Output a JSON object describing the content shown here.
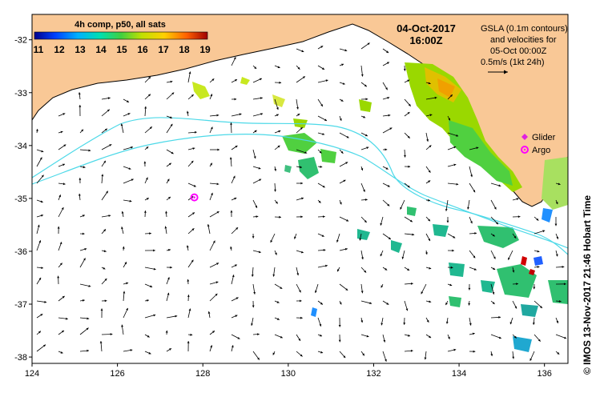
{
  "map": {
    "lon_ticks": [
      "124",
      "126",
      "128",
      "130",
      "132",
      "134",
      "136"
    ],
    "lat_ticks": [
      "-32",
      "-33",
      "-34",
      "-35",
      "-36",
      "-37",
      "-38"
    ],
    "lon_range": [
      124,
      136.55
    ],
    "lat_range": [
      -31.52,
      -38.12
    ]
  },
  "colorbar": {
    "title": "4h comp, p50, all sats",
    "ticks": [
      "11",
      "12",
      "13",
      "14",
      "15",
      "16",
      "17",
      "18",
      "19"
    ]
  },
  "date": {
    "line1": "04-Oct-2017",
    "line2": "16:00Z"
  },
  "info": {
    "line1": "GSLA (0.1m contours)",
    "line2": "and velocities for",
    "line3": "05-Oct 00:00Z",
    "line4": "0.5m/s (1kt 24h)"
  },
  "legend": {
    "glider": "Glider",
    "argo": "Argo"
  },
  "argo_float": {
    "lon": 127.8,
    "lat": -34.98
  },
  "credit": "© IMOS 13-Nov-2017 21:46 Hobart Time",
  "colors": {
    "land": "#f9c896",
    "ocean": "#ffffff",
    "contour": "#4dd9e8",
    "glider": "#e020e0",
    "argo": "#ff00ff"
  }
}
